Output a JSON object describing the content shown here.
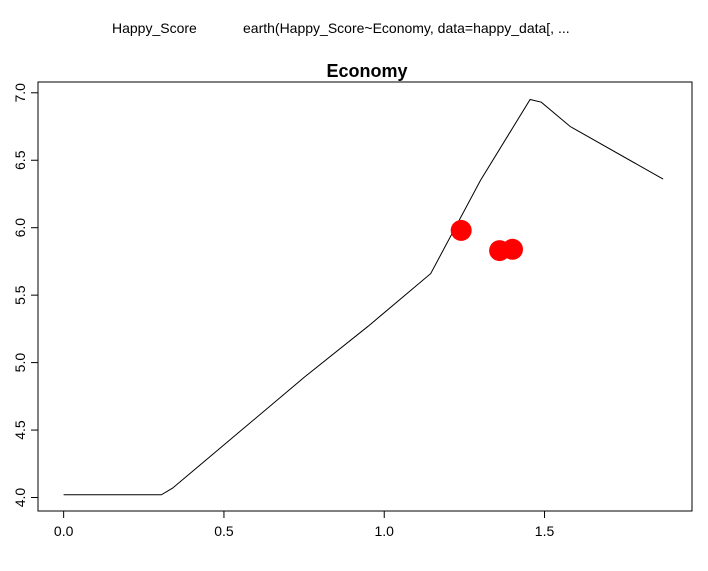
{
  "header": {
    "response": "Happy_Score",
    "call": "earth(Happy_Score~Economy, data=happy_data[, ..."
  },
  "chart_data": {
    "type": "line",
    "title": "Economy",
    "xlabel": "",
    "ylabel": "",
    "xlim": [
      -0.08,
      1.96
    ],
    "ylim": [
      3.9,
      7.08
    ],
    "x_ticks": [
      0.0,
      0.5,
      1.0,
      1.5
    ],
    "x_tick_labels": [
      "0.0",
      "0.5",
      "1.0",
      "1.5"
    ],
    "y_ticks": [
      4.0,
      4.5,
      5.0,
      5.5,
      6.0,
      6.5,
      7.0
    ],
    "y_tick_labels": [
      "4.0",
      "4.5",
      "5.0",
      "5.5",
      "6.0",
      "6.5",
      "7.0"
    ],
    "grid": false,
    "series": [
      {
        "type": "line",
        "color": "#000000",
        "x": [
          0.0,
          0.305,
          0.34,
          0.4,
          0.55,
          0.75,
          0.95,
          1.145,
          1.3,
          1.455,
          1.49,
          1.58,
          1.87
        ],
        "y": [
          4.02,
          4.02,
          4.07,
          4.19,
          4.49,
          4.89,
          5.27,
          5.66,
          6.35,
          6.95,
          6.93,
          6.75,
          6.36
        ]
      },
      {
        "type": "scatter",
        "color": "#ff0000",
        "x": [
          1.24,
          1.36,
          1.4
        ],
        "y": [
          5.98,
          5.83,
          5.84
        ]
      }
    ]
  }
}
